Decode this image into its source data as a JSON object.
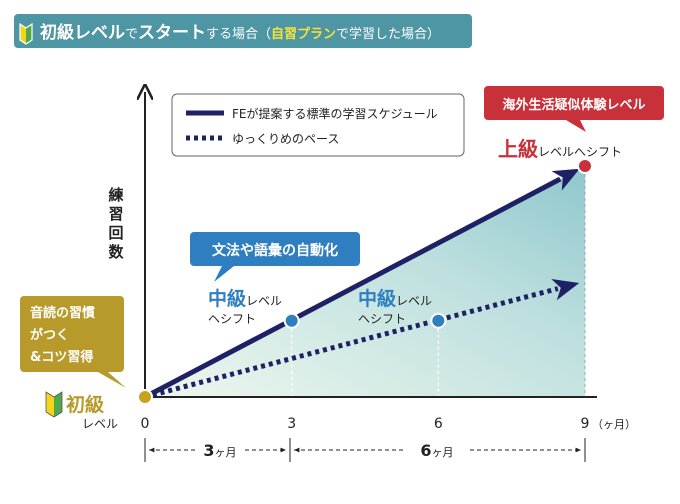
{
  "header": {
    "part1": "初級レベル",
    "part2": "で",
    "part3": "スタート",
    "part4": "する場合（",
    "part5": "自習プラン",
    "part6": "で学習した場合）"
  },
  "legend": {
    "standard": "FEが提案する標準の学習スケジュール",
    "slow": "ゆっくりめのペース"
  },
  "axis": {
    "ylabel": [
      "練",
      "習",
      "回",
      "数"
    ],
    "unit": "（ヶ月）"
  },
  "start": {
    "badge_lines": [
      "音読の習慣",
      "がつく",
      "&コツ習得"
    ],
    "level": "初級",
    "level_sub": "レベル"
  },
  "mid_callout": "文法や語彙の自動化",
  "mid_standard": {
    "big": "中級",
    "small": "レベル",
    "line2": "ヘシフト"
  },
  "mid_slow": {
    "big": "中級",
    "small": "レベル",
    "line2": "ヘシフト"
  },
  "end_callout": "海外生活疑似体験レベル",
  "end_label": {
    "big": "上級",
    "small": "レベルへシフト"
  },
  "durations": [
    {
      "value": "3",
      "unit": "ヶ月"
    },
    {
      "value": "6",
      "unit": "ヶ月"
    }
  ],
  "colors": {
    "header_bg": "#4e96a4",
    "navy": "#1e2264",
    "blue_accent": "#2f7fc0",
    "red_accent": "#c8303a",
    "gold": "#b89a2a",
    "teal_fill": "#9fd0d4"
  },
  "chart_data": {
    "type": "line",
    "xticks": [
      0,
      3,
      6,
      9
    ],
    "xlim": [
      0,
      9
    ],
    "series": [
      {
        "name": "FEが提案する標準の学習スケジュール",
        "style": "solid",
        "x": [
          0,
          3,
          9
        ],
        "y": [
          0,
          0.33,
          1.0
        ]
      },
      {
        "name": "ゆっくりめのペース",
        "style": "dotted",
        "x": [
          0,
          6,
          9
        ],
        "y": [
          0,
          0.33,
          0.5
        ]
      }
    ]
  }
}
